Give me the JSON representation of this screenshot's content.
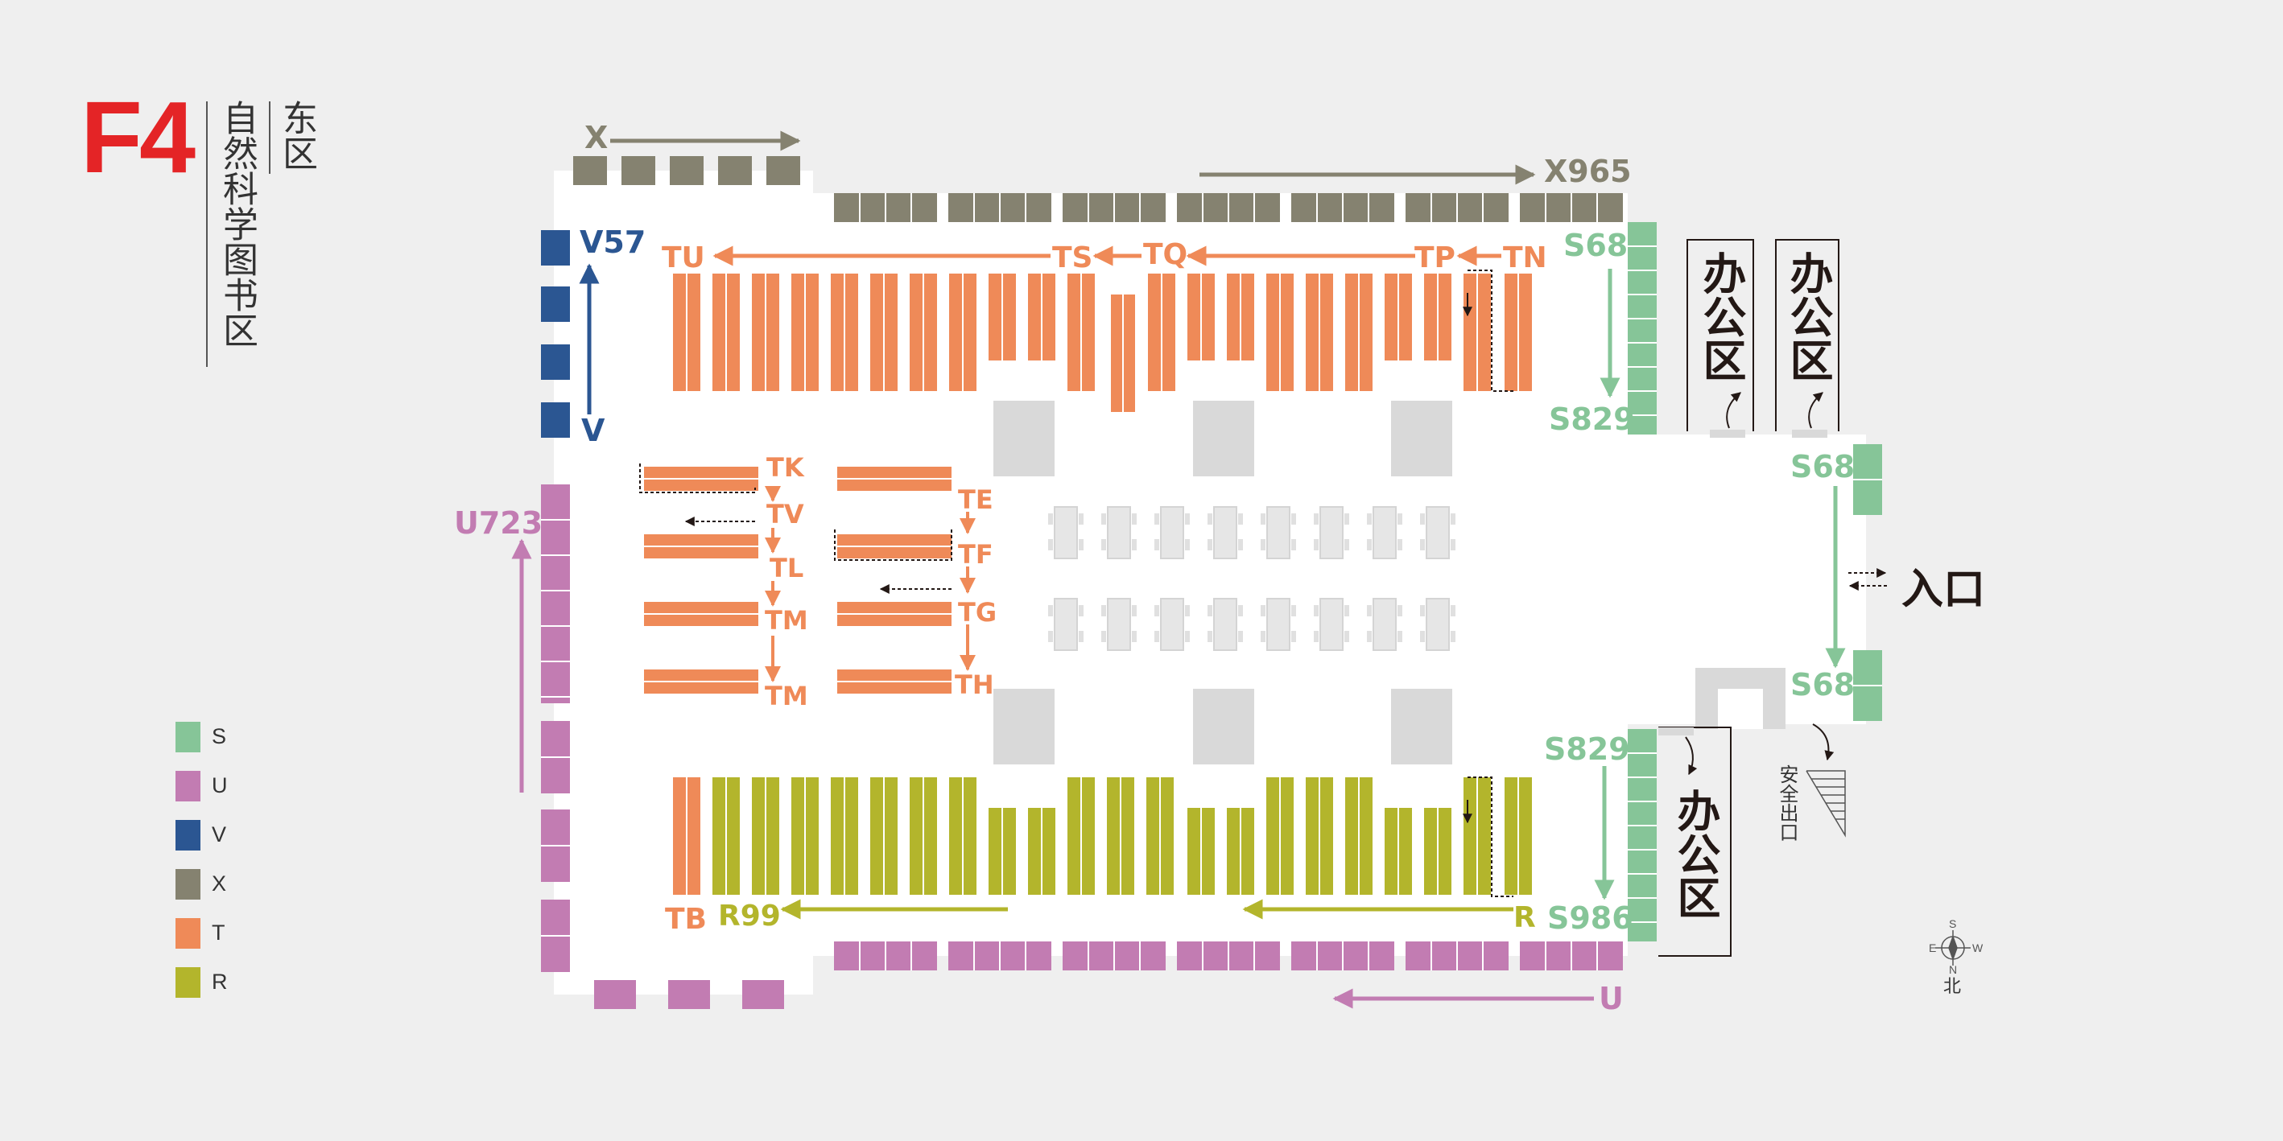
{
  "header": {
    "floor": "F4",
    "area": "东区",
    "subtitle": "自然科学图书区"
  },
  "legend": [
    {
      "code": "S",
      "color": "#86c598"
    },
    {
      "code": "U",
      "color": "#c27cb2"
    },
    {
      "code": "V",
      "color": "#2b5692"
    },
    {
      "code": "X",
      "color": "#858270"
    },
    {
      "code": "T",
      "color": "#ef8a58"
    },
    {
      "code": "R",
      "color": "#b3b52c"
    }
  ],
  "colors": {
    "S": "#86c598",
    "U": "#c27cb2",
    "V": "#2b5692",
    "X": "#858270",
    "T": "#ef8a58",
    "R": "#b3b52c",
    "grey": "#d9d9d9",
    "ink": "#231815"
  },
  "range_labels": {
    "X": "X",
    "X965": "X965",
    "V57": "V57",
    "V": "V",
    "U723": "U723",
    "U": "U",
    "S68_top": "S68",
    "S829_top": "S829",
    "S68_right_top": "S68",
    "S68_right_bottom": "S68",
    "S829_bottom": "S829",
    "S986": "S986",
    "TU": "TU",
    "TS": "TS",
    "TQ": "TQ",
    "TP": "TP",
    "TN": "TN",
    "TK": "TK",
    "TV": "TV",
    "TL": "TL",
    "TM1": "TM",
    "TM2": "TM",
    "TE": "TE",
    "TF": "TF",
    "TG": "TG",
    "TH": "TH",
    "TB": "TB",
    "R99": "R99",
    "R": "R"
  },
  "offices": [
    "办公区",
    "办公区",
    "办公区"
  ],
  "entrance": "入口",
  "exit": "安全出口",
  "compass": {
    "north": "北",
    "south": "S",
    "east": "E",
    "west": "W",
    "n": "N"
  }
}
